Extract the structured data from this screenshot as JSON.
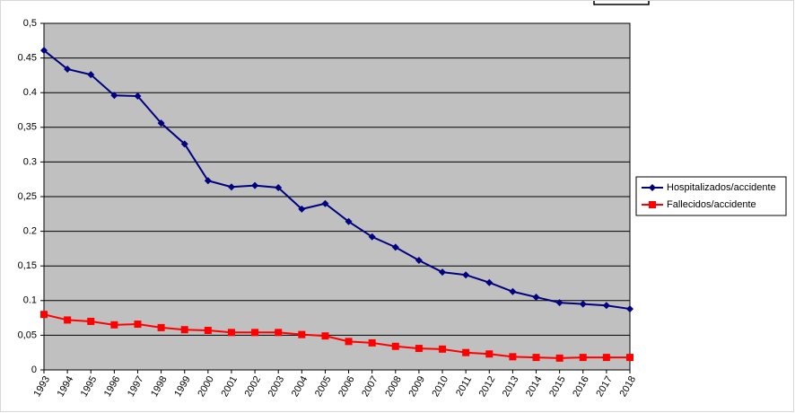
{
  "chart_data": {
    "type": "line",
    "categories": [
      "1993",
      "1994",
      "1995",
      "1996",
      "1997",
      "1998",
      "1999",
      "2000",
      "2001",
      "2002",
      "2003",
      "2004",
      "2005",
      "2006",
      "2007",
      "2008",
      "2009",
      "2010",
      "2011",
      "2012",
      "2013",
      "2014",
      "2015",
      "2016",
      "2017",
      "2018"
    ],
    "series": [
      {
        "name": "Hospitalizados/accidente",
        "color": "#000080",
        "marker": "diamond",
        "values": [
          0.461,
          0.434,
          0.426,
          0.396,
          0.395,
          0.356,
          0.326,
          0.273,
          0.264,
          0.266,
          0.263,
          0.232,
          0.24,
          0.214,
          0.192,
          0.177,
          0.158,
          0.141,
          0.137,
          0.126,
          0.113,
          0.105,
          0.097,
          0.095,
          0.093,
          0.088
        ]
      },
      {
        "name": "Fallecidos/accidente",
        "color": "#ff0000",
        "marker": "square",
        "values": [
          0.08,
          0.072,
          0.07,
          0.065,
          0.066,
          0.061,
          0.058,
          0.057,
          0.054,
          0.054,
          0.054,
          0.051,
          0.049,
          0.041,
          0.039,
          0.034,
          0.031,
          0.03,
          0.025,
          0.023,
          0.019,
          0.018,
          0.017,
          0.018,
          0.018,
          0.018
        ]
      }
    ],
    "ylim": [
      0,
      0.5
    ],
    "yticks": [
      0,
      {
        "value": 0.05,
        "label": "0,05"
      },
      0.1,
      {
        "value": 0.15,
        "label": "0,15"
      },
      0.2,
      {
        "value": 0.25,
        "label": "0,25"
      },
      0.3,
      {
        "value": 0.35,
        "label": "0,35"
      },
      0.4,
      0.45,
      {
        "value": 0.5,
        "label": "0,5"
      }
    ],
    "grid": true,
    "legend": "right",
    "plot_background": "#c0c0c0"
  }
}
